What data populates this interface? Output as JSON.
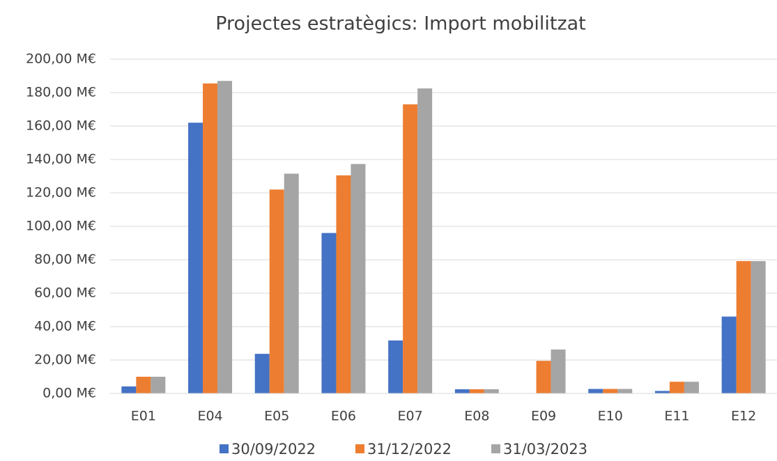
{
  "chart_data": {
    "type": "bar",
    "title": "Projectes estratègics: Import mobilitzat",
    "categories": [
      "E01",
      "E04",
      "E05",
      "E06",
      "E07",
      "E08",
      "E09",
      "E10",
      "E11",
      "E12"
    ],
    "series": [
      {
        "name": "30/09/2022",
        "color": "#4472c4",
        "values": [
          4.2,
          162,
          23.7,
          96,
          31.7,
          2.5,
          0,
          2.7,
          1.5,
          46
        ]
      },
      {
        "name": "31/12/2022",
        "color": "#ed7d31",
        "values": [
          10,
          185.5,
          122,
          130.5,
          173,
          2.5,
          19.5,
          2.7,
          7,
          79.2
        ]
      },
      {
        "name": "31/03/2023",
        "color": "#a5a5a5",
        "values": [
          10,
          187,
          131.5,
          137.3,
          182.5,
          2.5,
          26.3,
          2.7,
          7,
          79.2
        ]
      }
    ],
    "ylim": [
      0,
      200
    ],
    "yticks": [
      {
        "value": 0,
        "label": "0,00 M€"
      },
      {
        "value": 20,
        "label": "20,00 M€"
      },
      {
        "value": 40,
        "label": "40,00 M€"
      },
      {
        "value": 60,
        "label": "60,00 M€"
      },
      {
        "value": 80,
        "label": "80,00 M€"
      },
      {
        "value": 100,
        "label": "100,00 M€"
      },
      {
        "value": 120,
        "label": "120,00 M€"
      },
      {
        "value": 140,
        "label": "140,00 M€"
      },
      {
        "value": 160,
        "label": "160,00 M€"
      },
      {
        "value": 180,
        "label": "180,00 M€"
      },
      {
        "value": 200,
        "label": "200,00 M€"
      }
    ],
    "grid": true,
    "legend": "bottom"
  }
}
